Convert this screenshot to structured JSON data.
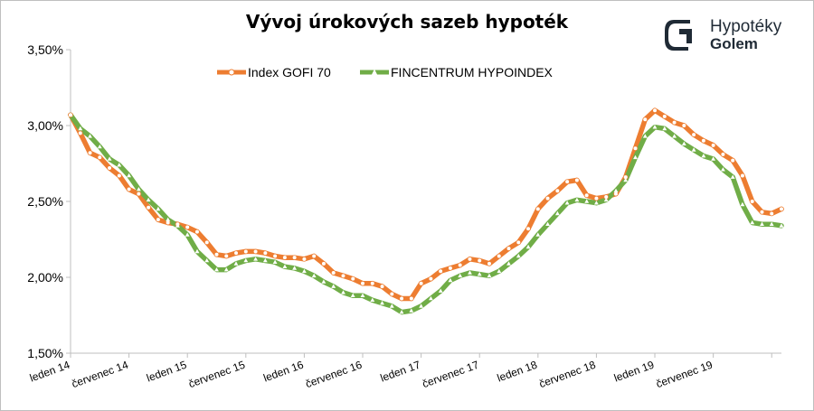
{
  "title": "Vývoj úrokových sazeb hypoték",
  "logo": {
    "line1": "Hypotéky",
    "line2": "Golem",
    "icon": "golem-logo-icon"
  },
  "colors": {
    "gofi": "#ed7d31",
    "fincentrum": "#70ad47",
    "axis": "#bfbfbf",
    "text": "#000000"
  },
  "chart_data": {
    "type": "line",
    "title": "Vývoj úrokových sazeb hypoték",
    "xlabel": "",
    "ylabel": "",
    "ylim": [
      1.5,
      3.5
    ],
    "yticks": [
      1.5,
      2.0,
      2.5,
      3.0,
      3.5
    ],
    "ytick_labels": [
      "1,50%",
      "2,00%",
      "2,50%",
      "3,00%",
      "3,50%"
    ],
    "x_start": "leden 14",
    "x_period": "monthly",
    "xtick_labels": [
      {
        "index": 0,
        "label": "leden 14"
      },
      {
        "index": 6,
        "label": "červenec 14"
      },
      {
        "index": 12,
        "label": "leden 15"
      },
      {
        "index": 18,
        "label": "červenec 15"
      },
      {
        "index": 24,
        "label": "leden 16"
      },
      {
        "index": 30,
        "label": "červenec 16"
      },
      {
        "index": 36,
        "label": "leden 17"
      },
      {
        "index": 42,
        "label": "červenec 17"
      },
      {
        "index": 48,
        "label": "leden 18"
      },
      {
        "index": 54,
        "label": "červenec 18"
      },
      {
        "index": 60,
        "label": "leden 19"
      },
      {
        "index": 66,
        "label": "červenec 19"
      }
    ],
    "grid": false,
    "legend": "top",
    "series": [
      {
        "name": "Index GOFI 70",
        "color": "#ed7d31",
        "marker": "circle",
        "values": [
          3.07,
          2.95,
          2.82,
          2.79,
          2.72,
          2.67,
          2.58,
          2.55,
          2.46,
          2.38,
          2.36,
          2.35,
          2.33,
          2.3,
          2.23,
          2.15,
          2.14,
          2.16,
          2.17,
          2.17,
          2.16,
          2.14,
          2.13,
          2.13,
          2.12,
          2.14,
          2.09,
          2.03,
          2.01,
          1.99,
          1.96,
          1.96,
          1.94,
          1.89,
          1.86,
          1.86,
          1.96,
          1.99,
          2.04,
          2.06,
          2.08,
          2.12,
          2.11,
          2.09,
          2.14,
          2.19,
          2.23,
          2.32,
          2.45,
          2.52,
          2.57,
          2.63,
          2.64,
          2.54,
          2.52,
          2.53,
          2.55,
          2.66,
          2.85,
          3.04,
          3.1,
          3.06,
          3.02,
          3.0,
          2.94,
          2.9,
          2.87,
          2.81,
          2.77,
          2.67,
          2.5,
          2.43,
          2.42,
          2.45
        ]
      },
      {
        "name": "FINCENTRUM HYPOINDEX",
        "color": "#70ad47",
        "marker": "triangle",
        "values": [
          3.07,
          2.98,
          2.93,
          2.86,
          2.78,
          2.74,
          2.67,
          2.58,
          2.51,
          2.45,
          2.38,
          2.34,
          2.28,
          2.17,
          2.11,
          2.05,
          2.05,
          2.09,
          2.11,
          2.12,
          2.11,
          2.1,
          2.07,
          2.06,
          2.04,
          2.01,
          1.97,
          1.94,
          1.9,
          1.88,
          1.88,
          1.85,
          1.83,
          1.81,
          1.77,
          1.78,
          1.81,
          1.86,
          1.91,
          1.98,
          2.01,
          2.03,
          2.02,
          2.01,
          2.04,
          2.09,
          2.14,
          2.2,
          2.28,
          2.35,
          2.42,
          2.49,
          2.51,
          2.5,
          2.49,
          2.51,
          2.57,
          2.64,
          2.79,
          2.93,
          2.99,
          2.98,
          2.93,
          2.88,
          2.84,
          2.8,
          2.78,
          2.71,
          2.66,
          2.48,
          2.36,
          2.35,
          2.35,
          2.34
        ]
      }
    ]
  }
}
